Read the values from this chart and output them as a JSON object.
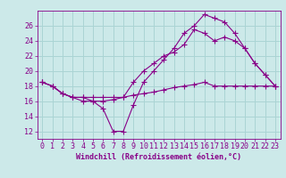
{
  "background_color": "#cce9e9",
  "grid_color": "#aad4d4",
  "line_color": "#880088",
  "xlabel": "Windchill (Refroidissement éolien,°C)",
  "xlim": [
    -0.5,
    23.5
  ],
  "ylim": [
    11.0,
    28.0
  ],
  "yticks": [
    12,
    14,
    16,
    18,
    20,
    22,
    24,
    26
  ],
  "xticks": [
    0,
    1,
    2,
    3,
    4,
    5,
    6,
    7,
    8,
    9,
    10,
    11,
    12,
    13,
    14,
    15,
    16,
    17,
    18,
    19,
    20,
    21,
    22,
    23
  ],
  "line1_x": [
    0,
    1,
    2,
    3,
    4,
    5,
    6,
    7,
    8,
    9,
    10,
    11,
    12,
    13,
    14,
    15,
    16,
    17,
    18,
    19,
    20,
    21,
    22,
    23
  ],
  "line1_y": [
    18.5,
    18.0,
    17.0,
    16.5,
    16.5,
    16.0,
    15.0,
    12.0,
    12.0,
    15.5,
    18.5,
    20.0,
    21.5,
    23.0,
    25.0,
    26.0,
    27.5,
    27.0,
    26.5,
    25.0,
    23.0,
    21.0,
    19.5,
    18.0
  ],
  "line2_x": [
    0,
    1,
    2,
    3,
    4,
    5,
    6,
    7,
    8,
    9,
    10,
    11,
    12,
    13,
    14,
    15,
    16,
    17,
    18,
    19,
    20,
    21,
    22,
    23
  ],
  "line2_y": [
    18.5,
    18.0,
    17.0,
    16.5,
    16.0,
    16.0,
    16.0,
    16.2,
    16.5,
    16.8,
    17.0,
    17.2,
    17.5,
    17.8,
    18.0,
    18.2,
    18.5,
    18.0,
    18.0,
    18.0,
    18.0,
    18.0,
    18.0,
    18.0
  ],
  "line3_x": [
    0,
    1,
    2,
    3,
    4,
    5,
    6,
    7,
    8,
    9,
    10,
    11,
    12,
    13,
    14,
    15,
    16,
    17,
    18,
    19,
    20,
    21,
    22,
    23
  ],
  "line3_y": [
    18.5,
    18.0,
    17.0,
    16.5,
    16.5,
    16.5,
    16.5,
    16.5,
    16.5,
    18.5,
    20.0,
    21.0,
    22.0,
    22.5,
    23.5,
    25.5,
    25.0,
    24.0,
    24.5,
    24.0,
    23.0,
    21.0,
    19.5,
    18.0
  ],
  "tick_fontsize": 6,
  "xlabel_fontsize": 6
}
